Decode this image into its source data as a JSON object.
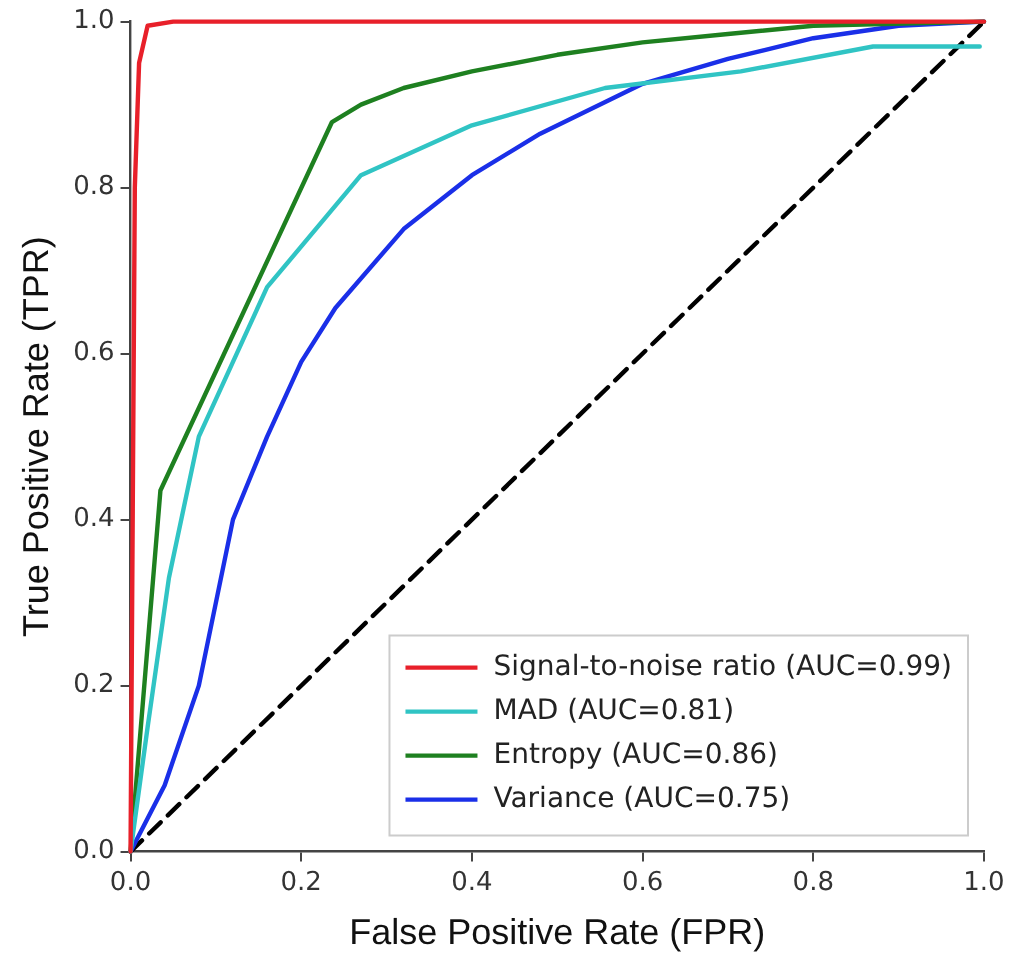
{
  "chart_data": {
    "type": "line",
    "xlabel": "False Positive Rate (FPR)",
    "ylabel": "True Positive Rate (TPR)",
    "xlim": [
      0,
      1
    ],
    "ylim": [
      0,
      1
    ],
    "xticks": [
      {
        "value": 0,
        "label": "0.0"
      },
      {
        "value": 0.2,
        "label": "0.2"
      },
      {
        "value": 0.4,
        "label": "0.4"
      },
      {
        "value": 0.6,
        "label": "0.6"
      },
      {
        "value": 0.8,
        "label": "0.8"
      },
      {
        "value": 1,
        "label": "1.0"
      }
    ],
    "yticks": [
      {
        "value": 0,
        "label": "0.0"
      },
      {
        "value": 0.2,
        "label": "0.2"
      },
      {
        "value": 0.4,
        "label": "0.4"
      },
      {
        "value": 0.6,
        "label": "0.6"
      },
      {
        "value": 0.8,
        "label": "0.8"
      },
      {
        "value": 1,
        "label": "1.0"
      }
    ],
    "grid": false,
    "legend": "bottom right",
    "marker": "none",
    "series": [
      {
        "name": "Signal-to-noise ratio (AUC=0.99)",
        "color": "#e8202a",
        "x": [
          0,
          0.005,
          0.01,
          0.02,
          0.05,
          1
        ],
        "values": [
          0,
          0.8,
          0.95,
          0.995,
          1,
          1
        ]
      },
      {
        "name": "MAD (AUC=0.81)",
        "color": "#30c4c4",
        "x": [
          0,
          0.02,
          0.045,
          0.08,
          0.16,
          0.27,
          0.4,
          0.556,
          0.715,
          0.87,
          0.995
        ],
        "values": [
          0,
          0.15,
          0.33,
          0.5,
          0.68,
          0.815,
          0.875,
          0.92,
          0.94,
          0.97,
          0.97
        ]
      },
      {
        "name": "Entropy (AUC=0.86)",
        "color": "#1e8020",
        "x": [
          0,
          0.035,
          0.236,
          0.27,
          0.32,
          0.4,
          0.5,
          0.6,
          0.7,
          0.8,
          1
        ],
        "values": [
          0,
          0.435,
          0.879,
          0.9,
          0.92,
          0.94,
          0.96,
          0.975,
          0.985,
          0.995,
          1
        ]
      },
      {
        "name": "Variance (AUC=0.75)",
        "color": "#1a2fe8",
        "x": [
          0,
          0.04,
          0.08,
          0.12,
          0.16,
          0.2,
          0.24,
          0.32,
          0.4,
          0.48,
          0.6,
          0.7,
          0.8,
          0.9,
          1
        ],
        "values": [
          0,
          0.08,
          0.2,
          0.4,
          0.5,
          0.59,
          0.655,
          0.75,
          0.815,
          0.865,
          0.925,
          0.955,
          0.98,
          0.995,
          1
        ]
      },
      {
        "color": "#000000",
        "line_style": "dashed",
        "x": [
          0,
          1
        ],
        "values": [
          0,
          1
        ]
      }
    ]
  }
}
